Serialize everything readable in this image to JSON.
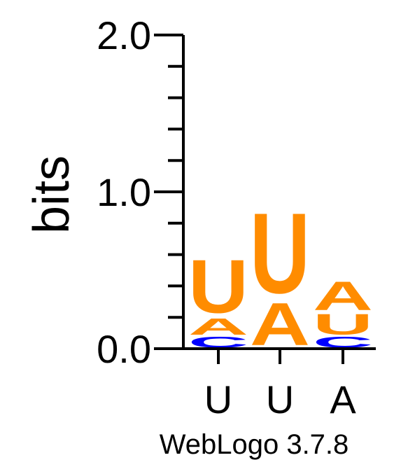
{
  "chart_data": {
    "type": "sequence-logo",
    "ylabel": "bits",
    "ylim": [
      0,
      2
    ],
    "y_ticks": [
      {
        "value": 0,
        "label": "0.0"
      },
      {
        "value": 1,
        "label": "1.0"
      },
      {
        "value": 2,
        "label": "2.0"
      }
    ],
    "positions": [
      {
        "label": "U",
        "stack": [
          {
            "letter": "C",
            "bits": 0.08
          },
          {
            "letter": "A",
            "bits": 0.12
          },
          {
            "letter": "U",
            "bits": 0.39
          }
        ]
      },
      {
        "label": "U",
        "stack": [
          {
            "letter": "A",
            "bits": 0.31
          },
          {
            "letter": "U",
            "bits": 0.59
          }
        ]
      },
      {
        "label": "A",
        "stack": [
          {
            "letter": "C",
            "bits": 0.08
          },
          {
            "letter": "U",
            "bits": 0.15
          },
          {
            "letter": "A",
            "bits": 0.21
          }
        ]
      }
    ],
    "colors": {
      "U": "#FF8C00",
      "A": "#FF8C00",
      "C": "#0000FF"
    },
    "footer": "WebLogo 3.7.8"
  }
}
